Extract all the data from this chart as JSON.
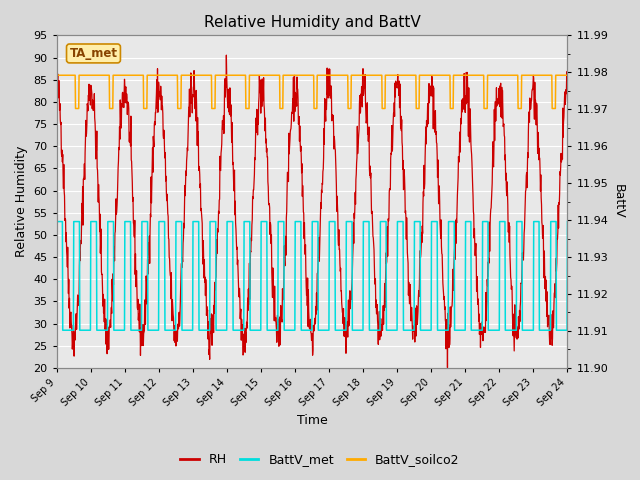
{
  "title": "Relative Humidity and BattV",
  "xlabel": "Time",
  "ylabel_left": "Relative Humidity",
  "ylabel_right": "BattV",
  "ylim_left": [
    20,
    95
  ],
  "ylim_right": [
    11.9,
    11.99
  ],
  "yticks_left": [
    20,
    25,
    30,
    35,
    40,
    45,
    50,
    55,
    60,
    65,
    70,
    75,
    80,
    85,
    90,
    95
  ],
  "yticks_right": [
    11.9,
    11.91,
    11.92,
    11.93,
    11.94,
    11.95,
    11.96,
    11.97,
    11.98,
    11.99
  ],
  "xtick_labels": [
    "Sep 9",
    "Sep 10",
    "Sep 11",
    "Sep 12",
    "Sep 13",
    "Sep 14",
    "Sep 15",
    "Sep 16",
    "Sep 17",
    "Sep 18",
    "Sep 19",
    "Sep 20",
    "Sep 21",
    "Sep 22",
    "Sep 23",
    "Sep 24"
  ],
  "bg_color": "#d8d8d8",
  "plot_bg_color": "#e8e8e8",
  "grid_color": "#ffffff",
  "rh_color": "#cc0000",
  "battv_met_color": "#00dddd",
  "battv_soilco2_color": "#ffaa00",
  "annotation_text": "TA_met",
  "annotation_fg": "#884400",
  "annotation_bg": "#ffeeaa",
  "annotation_border": "#cc8800",
  "legend_rh": "#cc0000",
  "legend_met": "#00dddd",
  "legend_soilco2": "#ffaa00"
}
